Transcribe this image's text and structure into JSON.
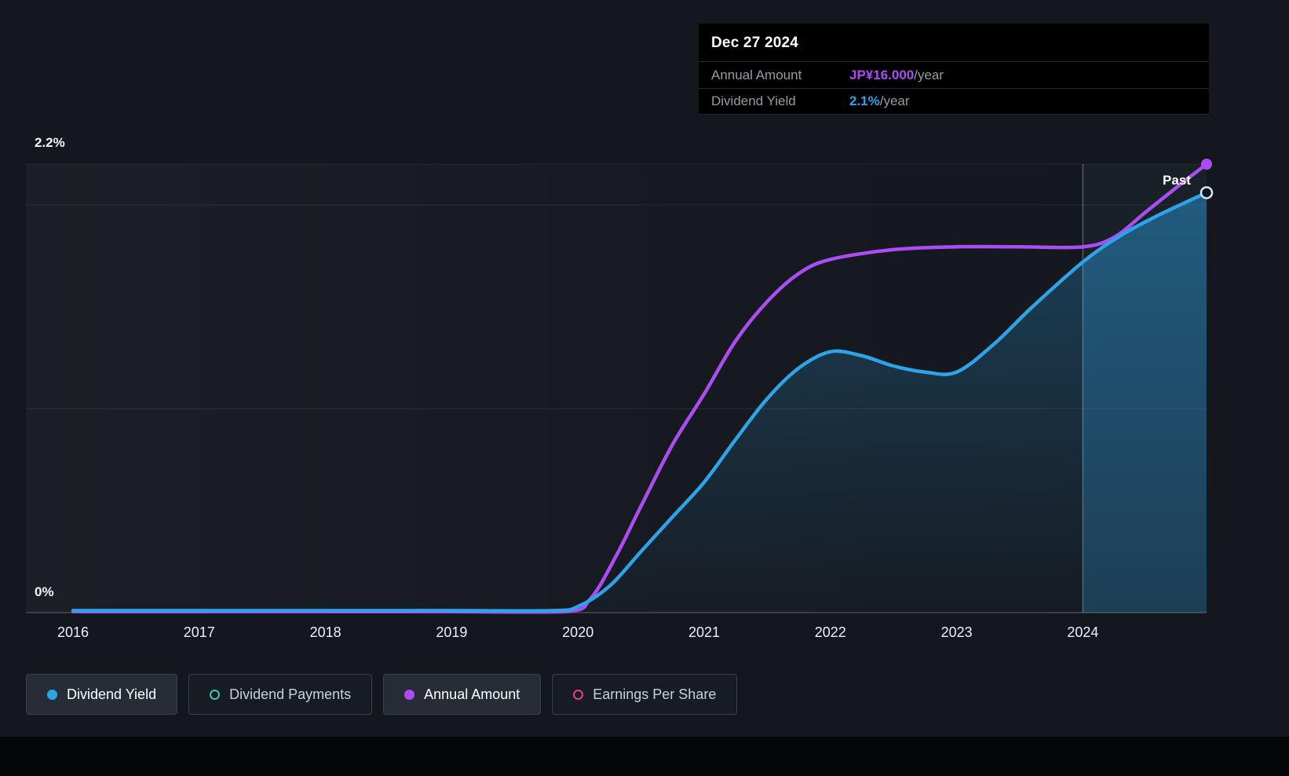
{
  "tooltip": {
    "date": "Dec 27 2024",
    "rows": [
      {
        "label": "Annual Amount",
        "value": "JP¥16.000",
        "suffix": "/year",
        "color": "#ab4df2"
      },
      {
        "label": "Dividend Yield",
        "value": "2.1%",
        "suffix": "/year",
        "color": "#2ea3e8"
      }
    ]
  },
  "past_label": "Past",
  "legend": [
    {
      "label": "Dividend Yield",
      "color": "#2ea3e8",
      "swatch": "filled",
      "active": true
    },
    {
      "label": "Dividend Payments",
      "color": "#45c4b3",
      "swatch": "hollow",
      "active": false
    },
    {
      "label": "Annual Amount",
      "color": "#ab4df2",
      "swatch": "filled",
      "active": true
    },
    {
      "label": "Earnings Per Share",
      "color": "#e0457b",
      "swatch": "hollow",
      "active": false
    }
  ],
  "colors": {
    "background": "#14181e",
    "tooltip_background": "#000000",
    "accent_blue": "#2ea3e8",
    "accent_purple": "#ab4df2",
    "accent_teal": "#45c4b3",
    "accent_pink": "#e0457b"
  },
  "chart_data": {
    "type": "line",
    "title": "Dividend yield and annual dividend amount history",
    "x_range": [
      2016,
      2024.98
    ],
    "x_ticks": [
      "2016",
      "2017",
      "2018",
      "2019",
      "2020",
      "2021",
      "2022",
      "2023",
      "2024"
    ],
    "x_tick_values": [
      2016,
      2017,
      2018,
      2019,
      2020,
      2021,
      2022,
      2023,
      2024
    ],
    "y_axis_labels": {
      "top": "2.2%",
      "bottom": "0%"
    },
    "gridlines_pct": [
      2.2,
      2.0,
      1.0,
      0
    ],
    "yield_axis_max_pct": 2.2,
    "divider_year": 2024,
    "legend_position": "bottom",
    "series": [
      {
        "name": "Annual Amount",
        "unit": "JP¥/year",
        "color": "#ab4df2",
        "ymax": 16,
        "end_value": "JP¥16.000/year",
        "end_marker": "filled",
        "x": [
          2016,
          2017,
          2018,
          2019,
          2019.9,
          2020.1,
          2020.3,
          2020.5,
          2020.75,
          2021,
          2021.25,
          2021.5,
          2021.75,
          2022,
          2022.5,
          2023,
          2023.5,
          2024,
          2024.25,
          2024.5,
          2024.75,
          2024.98
        ],
        "y": [
          0,
          0,
          0,
          0,
          0,
          0.5,
          2.0,
          3.8,
          6.0,
          7.8,
          9.7,
          11.1,
          12.1,
          12.6,
          12.95,
          13.05,
          13.05,
          13.05,
          13.4,
          14.3,
          15.2,
          16.0
        ]
      },
      {
        "name": "Dividend Yield",
        "unit": "%",
        "color": "#2ea3e8",
        "ymax": 2.2,
        "end_value": "2.1%/year",
        "end_marker": "hollow",
        "area": true,
        "x": [
          2016,
          2017,
          2018,
          2019,
          2019.8,
          2020,
          2020.25,
          2020.5,
          2020.75,
          2021,
          2021.25,
          2021.5,
          2021.75,
          2022,
          2022.25,
          2022.5,
          2022.75,
          2023,
          2023.3,
          2023.6,
          2024,
          2024.3,
          2024.6,
          2024.98
        ],
        "y": [
          0.01,
          0.01,
          0.01,
          0.01,
          0.01,
          0.03,
          0.13,
          0.3,
          0.47,
          0.64,
          0.85,
          1.05,
          1.2,
          1.28,
          1.26,
          1.21,
          1.18,
          1.18,
          1.32,
          1.5,
          1.72,
          1.85,
          1.95,
          2.06
        ]
      }
    ]
  }
}
